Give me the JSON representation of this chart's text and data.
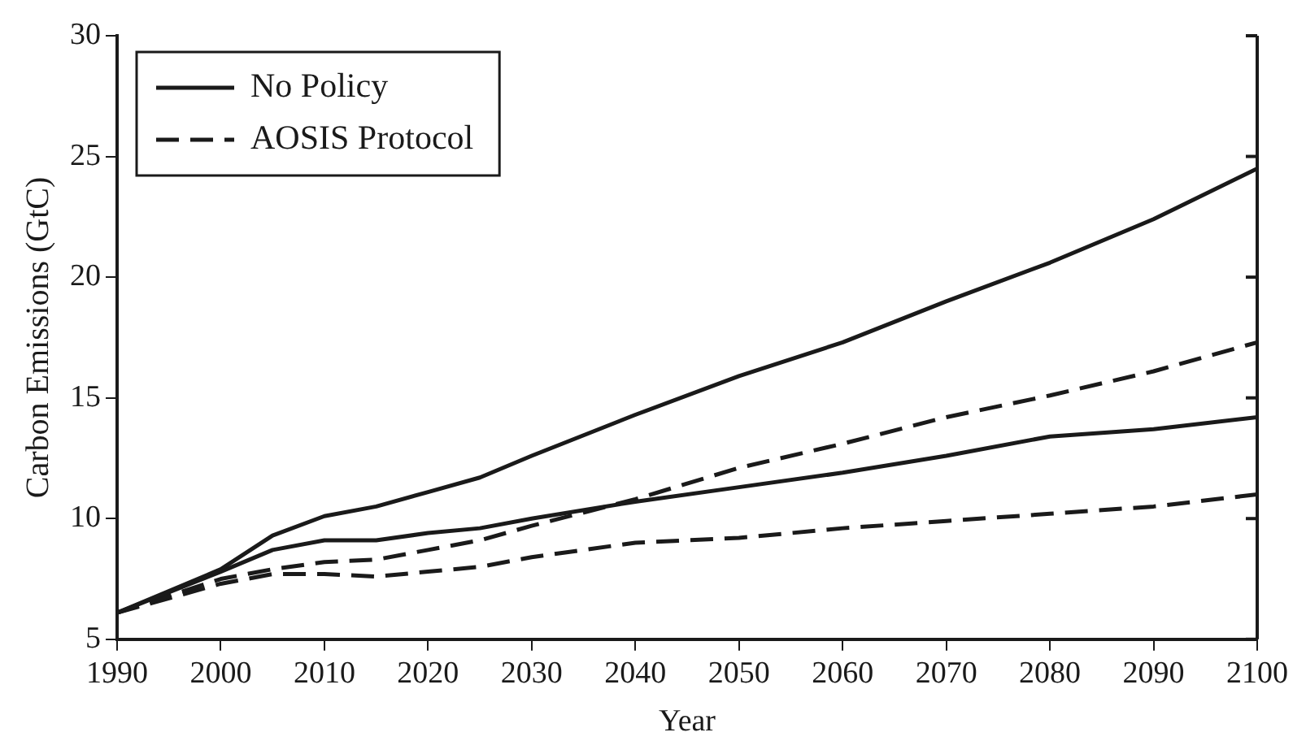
{
  "chart_data": {
    "type": "line",
    "xlabel": "Year",
    "ylabel": "Carbon Emissions (GtC)",
    "xlim": [
      1990,
      2100
    ],
    "xticks": [
      1990,
      2000,
      2010,
      2020,
      2030,
      2040,
      2050,
      2060,
      2070,
      2080,
      2090,
      2100
    ],
    "ylim": [
      5,
      30
    ],
    "yticks": [
      5,
      10,
      15,
      20,
      25,
      30
    ],
    "grid": false,
    "legend": "top left",
    "marker": "none",
    "x": [
      1990,
      2000,
      2005,
      2010,
      2015,
      2020,
      2025,
      2030,
      2040,
      2050,
      2060,
      2070,
      2080,
      2090,
      2100
    ],
    "series": [
      {
        "name": "No Policy",
        "color": "#1a1a1a",
        "line_style": "solid",
        "values": [
          6.1,
          7.9,
          9.3,
          10.1,
          10.5,
          11.1,
          11.7,
          12.6,
          14.3,
          15.9,
          17.3,
          19.0,
          20.6,
          22.4,
          24.5
        ]
      },
      {
        "color": "#1a1a1a",
        "line_style": "solid",
        "values": [
          6.1,
          7.8,
          8.7,
          9.1,
          9.1,
          9.4,
          9.6,
          10.0,
          10.7,
          11.3,
          11.9,
          12.6,
          13.4,
          13.7,
          14.2
        ]
      },
      {
        "name": "AOSIS Protocol",
        "color": "#1a1a1a",
        "line_style": "dashed",
        "values": [
          6.1,
          7.5,
          7.9,
          8.2,
          8.3,
          8.7,
          9.1,
          9.7,
          10.8,
          12.1,
          13.1,
          14.2,
          15.1,
          16.1,
          17.3
        ]
      },
      {
        "color": "#1a1a1a",
        "line_style": "dashed",
        "values": [
          6.1,
          7.3,
          7.7,
          7.7,
          7.6,
          7.8,
          8.0,
          8.4,
          9.0,
          9.2,
          9.6,
          9.9,
          10.2,
          10.5,
          11.0
        ]
      }
    ]
  }
}
